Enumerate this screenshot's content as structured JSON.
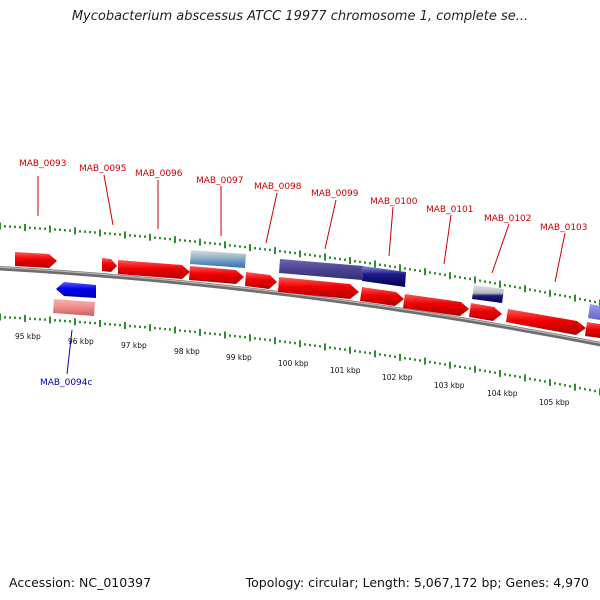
{
  "title": "Mycobacterium abscessus ATCC 19977 chromosome 1, complete se...",
  "footer": {
    "accession": "Accession: NC_010397",
    "summary": "Topology: circular; Length: 5,067,172 bp; Genes: 4,970"
  },
  "colors": {
    "forward_cds": "#ee0000",
    "reverse_cds": "#0000ee",
    "forward_label": "#cc0000",
    "reverse_label": "#0000aa",
    "tick": "#2f8f2f",
    "backbone": "#8a8a8a"
  },
  "kbp_ticks": [
    "95 kbp",
    "96 kbp",
    "97 kbp",
    "98 kbp",
    "99 kbp",
    "100 kbp",
    "101 kbp",
    "102 kbp",
    "103 kbp",
    "104 kbp",
    "105 kbp"
  ],
  "forward_gene_labels": [
    "MAB_0093",
    "MAB_0095",
    "MAB_0096",
    "MAB_0097",
    "MAB_0098",
    "MAB_0099",
    "MAB_0100",
    "MAB_0101",
    "MAB_0102",
    "MAB_0103"
  ],
  "reverse_gene_labels": [
    "MAB_0094c"
  ]
}
